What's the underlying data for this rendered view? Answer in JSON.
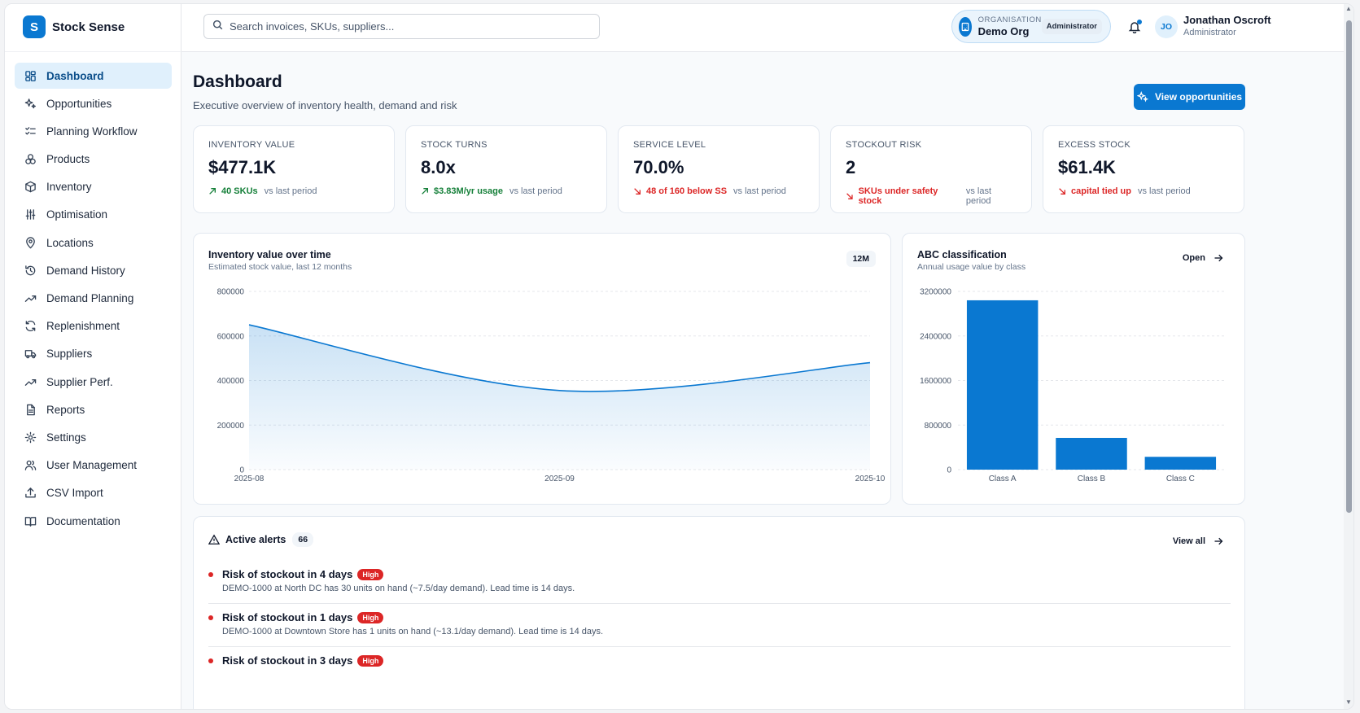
{
  "brand": {
    "logo_letter": "S",
    "name": "Stock Sense"
  },
  "nav": [
    {
      "label": "Dashboard",
      "icon": "dashboard-icon",
      "active": true
    },
    {
      "label": "Opportunities",
      "icon": "sparkles-icon"
    },
    {
      "label": "Planning Workflow",
      "icon": "checklist-icon"
    },
    {
      "label": "Products",
      "icon": "boxes-icon"
    },
    {
      "label": "Inventory",
      "icon": "package-icon"
    },
    {
      "label": "Optimisation",
      "icon": "sliders-icon"
    },
    {
      "label": "Locations",
      "icon": "map-pin-icon"
    },
    {
      "label": "Demand History",
      "icon": "history-icon"
    },
    {
      "label": "Demand Planning",
      "icon": "trending-up-icon"
    },
    {
      "label": "Replenishment",
      "icon": "refresh-icon"
    },
    {
      "label": "Suppliers",
      "icon": "truck-icon"
    },
    {
      "label": "Supplier Perf.",
      "icon": "trending-up-icon"
    },
    {
      "label": "Reports",
      "icon": "document-icon"
    },
    {
      "label": "Settings",
      "icon": "gear-icon"
    },
    {
      "label": "User Management",
      "icon": "users-icon"
    },
    {
      "label": "CSV Import",
      "icon": "upload-icon"
    },
    {
      "label": "Documentation",
      "icon": "book-icon"
    }
  ],
  "search": {
    "placeholder": "Search invoices, SKUs, suppliers..."
  },
  "org": {
    "label": "ORGANISATION",
    "name": "Demo Org",
    "role": "Administrator"
  },
  "user": {
    "initials": "JO",
    "name": "Jonathan Oscroft",
    "role": "Administrator"
  },
  "page": {
    "title": "Dashboard",
    "subtitle": "Executive overview of inventory health, demand and risk",
    "cta": "View opportunities"
  },
  "kpis": [
    {
      "label": "INVENTORY VALUE",
      "value": "$477.1K",
      "delta": "40 SKUs",
      "trend": "up",
      "period": "vs last period"
    },
    {
      "label": "STOCK TURNS",
      "value": "8.0x",
      "delta": "$3.83M/yr usage",
      "trend": "up",
      "period": "vs last period"
    },
    {
      "label": "SERVICE LEVEL",
      "value": "70.0%",
      "delta": "48 of 160 below SS",
      "trend": "down",
      "period": "vs last period"
    },
    {
      "label": "STOCKOUT RISK",
      "value": "2",
      "delta": "SKUs under safety stock",
      "trend": "down",
      "period": "vs last period"
    },
    {
      "label": "EXCESS STOCK",
      "value": "$61.4K",
      "delta": "capital tied up",
      "trend": "down",
      "period": "vs last period"
    }
  ],
  "line_card": {
    "title": "Inventory value over time",
    "subtitle": "Estimated stock value, last 12 months",
    "range": "12M"
  },
  "bar_card": {
    "title": "ABC classification",
    "subtitle": "Annual usage value by class",
    "link": "Open"
  },
  "chart_data": [
    {
      "type": "area",
      "title": "Inventory value over time",
      "x": [
        "2025-08",
        "2025-09",
        "2025-10"
      ],
      "y": [
        650000,
        355000,
        480000
      ],
      "ylim": [
        0,
        800000
      ],
      "yticks": [
        "0",
        "200000",
        "400000",
        "600000",
        "800000"
      ],
      "grid": true,
      "color": "#0a78d1"
    },
    {
      "type": "bar",
      "title": "ABC classification",
      "categories": [
        "Class A",
        "Class B",
        "Class C"
      ],
      "values": [
        3040000,
        570000,
        230000
      ],
      "ylim": [
        0,
        3200000
      ],
      "yticks": [
        "0",
        "800000",
        "1600000",
        "2400000",
        "3200000"
      ],
      "grid": true,
      "color": "#0a78d1"
    }
  ],
  "alerts": {
    "title": "Active alerts",
    "count": "66",
    "view_all": "View all",
    "items": [
      {
        "title": "Risk of stockout in 4 days",
        "severity": "High",
        "desc": "DEMO-1000 at North DC has 30 units on hand (~7.5/day demand). Lead time is 14 days."
      },
      {
        "title": "Risk of stockout in 1 days",
        "severity": "High",
        "desc": "DEMO-1000 at Downtown Store has 1 units on hand (~13.1/day demand). Lead time is 14 days."
      },
      {
        "title": "Risk of stockout in 3 days",
        "severity": "High",
        "desc": ""
      }
    ]
  }
}
